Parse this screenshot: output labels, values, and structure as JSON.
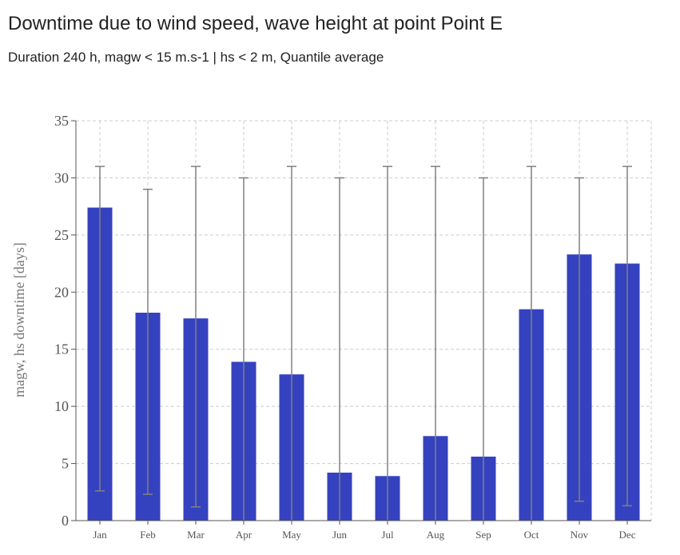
{
  "chart_data": {
    "type": "bar",
    "title": "Downtime due to wind speed, wave height at point Point E",
    "subtitle": "Duration 240 h, magw < 15 m.s-1 | hs < 2 m, Quantile average",
    "xlabel": "",
    "ylabel": "magw, hs downtime [days]",
    "ylim": [
      0,
      35
    ],
    "yticks": [
      "0",
      "5",
      "10",
      "15",
      "20",
      "25",
      "30",
      "35"
    ],
    "grid": true,
    "categories": [
      "Jan",
      "Feb",
      "Mar",
      "Apr",
      "May",
      "Jun",
      "Jul",
      "Aug",
      "Sep",
      "Oct",
      "Nov",
      "Dec"
    ],
    "values": [
      27.4,
      18.2,
      17.7,
      13.9,
      12.8,
      4.2,
      3.9,
      7.4,
      5.6,
      18.5,
      23.3,
      22.5
    ],
    "error_low": [
      2.6,
      2.3,
      1.2,
      0,
      0,
      0,
      0,
      0,
      0,
      0,
      1.7,
      1.3
    ],
    "error_high": [
      31,
      29,
      31,
      30,
      31,
      30,
      31,
      31,
      30,
      31,
      30,
      31
    ],
    "colors": {
      "bar": "#3542c0",
      "error": "#808080",
      "grid": "#cccccc"
    }
  }
}
